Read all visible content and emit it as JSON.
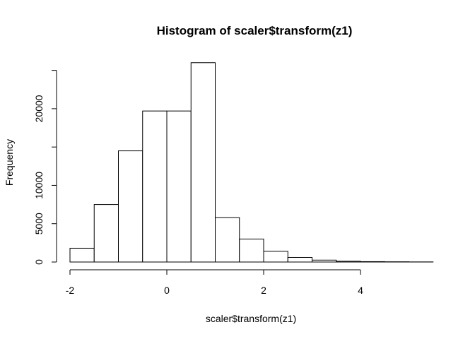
{
  "chart_data": {
    "type": "bar",
    "title": "Histogram of scaler$transform(z1)",
    "xlabel": "scaler$transform(z1)",
    "ylabel": "Frequency",
    "bins": [
      {
        "x0": -2.0,
        "x1": -1.5,
        "count": 1800
      },
      {
        "x0": -1.5,
        "x1": -1.0,
        "count": 7500
      },
      {
        "x0": -1.0,
        "x1": -0.5,
        "count": 14500
      },
      {
        "x0": -0.5,
        "x1": 0.0,
        "count": 19700
      },
      {
        "x0": 0.0,
        "x1": 0.5,
        "count": 19700
      },
      {
        "x0": 0.5,
        "x1": 1.0,
        "count": 26000
      },
      {
        "x0": 1.0,
        "x1": 1.5,
        "count": 5800
      },
      {
        "x0": 1.5,
        "x1": 2.0,
        "count": 3000
      },
      {
        "x0": 2.0,
        "x1": 2.5,
        "count": 1400
      },
      {
        "x0": 2.5,
        "x1": 3.0,
        "count": 600
      },
      {
        "x0": 3.0,
        "x1": 3.5,
        "count": 250
      },
      {
        "x0": 3.5,
        "x1": 4.0,
        "count": 100
      },
      {
        "x0": 4.0,
        "x1": 4.5,
        "count": 50
      },
      {
        "x0": 4.5,
        "x1": 5.0,
        "count": 30
      },
      {
        "x0": 5.0,
        "x1": 5.5,
        "count": 15
      }
    ],
    "xlim": [
      -2,
      5.5
    ],
    "ylim": [
      0,
      26000
    ],
    "x_ticks": [
      -2,
      0,
      2,
      4
    ],
    "x_tick_labels": [
      "-2",
      "0",
      "2",
      "4"
    ],
    "y_ticks": [
      0,
      5000,
      10000,
      15000,
      20000,
      25000
    ],
    "y_tick_labels": [
      "0",
      "5000",
      "10000",
      "",
      "20000",
      ""
    ],
    "grid": false,
    "legend": "none"
  }
}
